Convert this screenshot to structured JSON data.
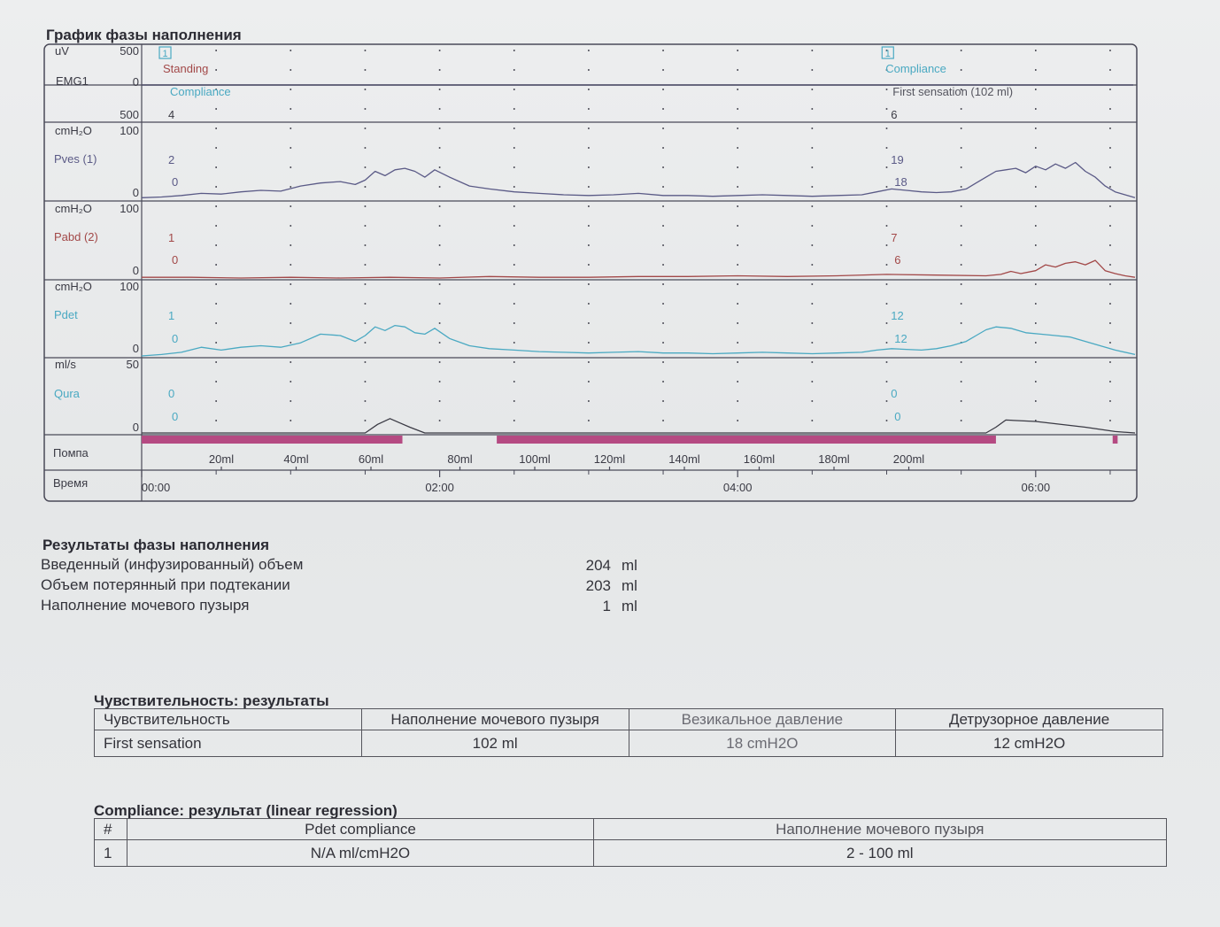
{
  "chart_title": "График фазы наполнения",
  "chart_data": {
    "type": "line",
    "title": "График фазы наполнения",
    "channels": [
      {
        "name": "EMG1",
        "unit": "uV",
        "scale_top": "500",
        "scale_mid": "0",
        "scale_bottom": "500",
        "color": "#4a4a66"
      },
      {
        "name": "Pves (1)",
        "unit": "cmH2O",
        "scale_top": "100",
        "scale_bottom": "0",
        "ylim": [
          0,
          100
        ],
        "color": "#5a5a86"
      },
      {
        "name": "Pabd (2)",
        "unit": "cmH2O",
        "scale_top": "100",
        "scale_bottom": "0",
        "ylim": [
          0,
          100
        ],
        "color": "#a24848"
      },
      {
        "name": "Pdet",
        "unit": "cmH2O",
        "scale_top": "100",
        "scale_bottom": "0",
        "ylim": [
          0,
          100
        ],
        "color": "#4aa9c2"
      },
      {
        "name": "Qura",
        "unit": "ml/s",
        "scale_top": "50",
        "scale_bottom": "0",
        "ylim": [
          0,
          50
        ],
        "color": "#4aa9c2"
      }
    ],
    "time_axis": {
      "label": "Время",
      "ticks": [
        "00:00",
        "02:00",
        "04:00",
        "06:00"
      ],
      "range_min": [
        0,
        400
      ]
    },
    "pump_axis": {
      "label": "Помпа",
      "ticks": [
        "20ml",
        "40ml",
        "60ml",
        "80ml",
        "100ml",
        "120ml",
        "140ml",
        "160ml",
        "180ml",
        "200ml"
      ]
    },
    "pump_segments": [
      {
        "start_min": 0,
        "end_min": 105
      },
      {
        "start_min": 143,
        "end_min": 344
      },
      {
        "start_min": 391,
        "end_min": 393
      }
    ],
    "events": [
      {
        "marker": "1",
        "time_min": 5,
        "label_top": "Standing",
        "label_mid": "Compliance",
        "emg": "4",
        "pves": [
          "2",
          "0"
        ],
        "pabd": [
          "1",
          "0"
        ],
        "pdet": [
          "1",
          "0"
        ],
        "qura": [
          "0",
          "0"
        ]
      },
      {
        "marker": "1",
        "time_min": 296,
        "label_top": "Compliance",
        "label_mid": "First sensation (102 ml)",
        "emg": "6",
        "pves": [
          "19",
          "18"
        ],
        "pabd": [
          "7",
          "6"
        ],
        "pdet": [
          "12",
          "12"
        ],
        "qura": [
          "0",
          "0"
        ]
      }
    ],
    "series": [
      {
        "name": "Pves (1)",
        "x_min": [
          0,
          8,
          16,
          24,
          32,
          40,
          48,
          56,
          64,
          72,
          80,
          86,
          90,
          94,
          98,
          102,
          106,
          110,
          114,
          118,
          124,
          132,
          140,
          150,
          160,
          170,
          180,
          190,
          200,
          210,
          220,
          230,
          240,
          250,
          260,
          270,
          280,
          290,
          296,
          302,
          308,
          314,
          320,
          326,
          332,
          336,
          340,
          344,
          348,
          352,
          356,
          360,
          364,
          368,
          372,
          376,
          380,
          384,
          388,
          392,
          396,
          400
        ],
        "values": [
          2,
          3,
          5,
          8,
          7,
          10,
          12,
          11,
          18,
          22,
          24,
          20,
          26,
          38,
          32,
          40,
          42,
          38,
          30,
          40,
          30,
          18,
          14,
          10,
          8,
          6,
          5,
          6,
          8,
          5,
          5,
          4,
          5,
          6,
          5,
          4,
          5,
          6,
          10,
          14,
          12,
          10,
          9,
          10,
          14,
          22,
          30,
          38,
          40,
          42,
          36,
          45,
          40,
          48,
          42,
          50,
          38,
          30,
          18,
          10,
          6,
          2
        ]
      },
      {
        "name": "Pabd (2)",
        "x_min": [
          0,
          20,
          40,
          60,
          80,
          100,
          120,
          140,
          160,
          180,
          200,
          220,
          240,
          260,
          280,
          300,
          320,
          340,
          346,
          350,
          354,
          360,
          364,
          368,
          372,
          376,
          380,
          384,
          388,
          392,
          396,
          400
        ],
        "values": [
          1,
          1,
          0,
          1,
          0,
          1,
          0,
          2,
          1,
          1,
          2,
          2,
          3,
          2,
          3,
          5,
          4,
          3,
          5,
          9,
          6,
          10,
          18,
          15,
          20,
          22,
          18,
          24,
          10,
          6,
          3,
          1
        ]
      },
      {
        "name": "Pdet",
        "x_min": [
          0,
          8,
          16,
          24,
          32,
          40,
          48,
          56,
          64,
          72,
          80,
          86,
          90,
          94,
          98,
          102,
          106,
          110,
          114,
          118,
          124,
          132,
          140,
          150,
          160,
          170,
          180,
          190,
          200,
          210,
          220,
          230,
          240,
          250,
          260,
          270,
          280,
          290,
          296,
          302,
          308,
          314,
          320,
          326,
          332,
          336,
          340,
          344,
          350,
          356,
          362,
          368,
          374,
          380,
          386,
          392,
          400
        ],
        "values": [
          0,
          2,
          5,
          12,
          8,
          12,
          14,
          12,
          18,
          30,
          28,
          20,
          28,
          40,
          35,
          42,
          40,
          32,
          30,
          38,
          24,
          14,
          10,
          8,
          6,
          5,
          4,
          5,
          6,
          4,
          4,
          3,
          4,
          5,
          4,
          3,
          4,
          5,
          8,
          10,
          9,
          8,
          10,
          14,
          20,
          28,
          36,
          40,
          38,
          32,
          30,
          28,
          26,
          20,
          14,
          8,
          2
        ]
      },
      {
        "name": "Qura",
        "x_min": [
          0,
          90,
          95,
          100,
          104,
          108,
          114,
          340,
          344,
          348,
          360,
          380,
          392,
          400
        ],
        "values": [
          0,
          0,
          6,
          10,
          7,
          4,
          0,
          0,
          4,
          9,
          8,
          4,
          1,
          0
        ]
      }
    ]
  },
  "results": {
    "title": "Результаты фазы наполнения",
    "rows": [
      {
        "label": "Введенный (инфузированный) объем",
        "value": "204",
        "unit": "ml"
      },
      {
        "label": "Объем потерянный при подтекании",
        "value": "203",
        "unit": "ml"
      },
      {
        "label": "Наполнение мочевого пузыря",
        "value": "1",
        "unit": "ml"
      }
    ]
  },
  "sensitivity": {
    "title": "Чувствительность: результаты",
    "headers": [
      "Чувствительность",
      "Наполнение мочевого пузыря",
      "Везикальное давление",
      "Детрузорное давление"
    ],
    "row": [
      "First sensation",
      "102  ml",
      "18  cmH2O",
      "12  cmH2O"
    ]
  },
  "compliance": {
    "title": "Compliance: результат (linear regression)",
    "headers": [
      "#",
      "Pdet compliance",
      "Наполнение мочевого пузыря"
    ],
    "row": [
      "1",
      "N/A  ml/cmH2O",
      "2 - 100  ml"
    ]
  }
}
